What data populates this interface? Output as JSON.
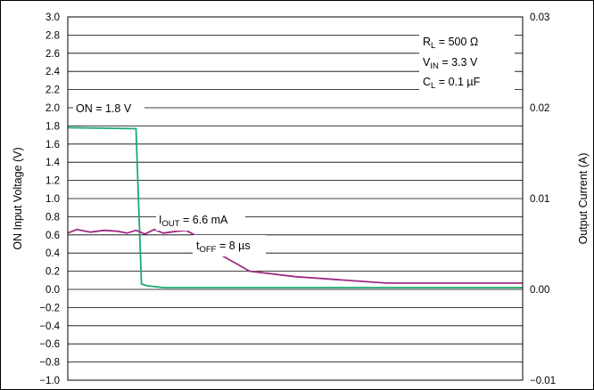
{
  "chart_data": {
    "type": "line",
    "title": "",
    "ylabel": "ON Input Voltage (V)",
    "y2label": "Output Current (A)",
    "xlabel": "",
    "ylim": [
      -1.0,
      3.0
    ],
    "y2lim": [
      -0.01,
      0.03
    ],
    "x_range": [
      0,
      50
    ],
    "grid": true,
    "yticks": [
      "3.0",
      "2.8",
      "2.6",
      "2.4",
      "2.2",
      "2.0",
      "1.8",
      "1.6",
      "1.4",
      "1.2",
      "1.0",
      "0.8",
      "0.6",
      "0.4",
      "0.2",
      "0.0",
      "−0.2",
      "−0.4",
      "−0.6",
      "−0.8",
      "−1.0"
    ],
    "y2ticks": [
      "0.03",
      "0.02",
      "0.01",
      "0.00",
      "−0.01"
    ],
    "series": [
      {
        "axis": "left",
        "color": "#1aaa6e",
        "x": [
          0,
          7.5,
          8.1,
          8.7,
          10.5,
          50
        ],
        "y": [
          1.78,
          1.77,
          0.06,
          0.04,
          0.02,
          0.02
        ]
      },
      {
        "axis": "right",
        "color": "#9e2a85",
        "x": [
          0,
          1,
          2.5,
          4,
          5.5,
          6.5,
          7.5,
          8.5,
          9.5,
          10.5,
          12,
          13,
          14.5,
          17,
          20,
          25,
          35,
          50
        ],
        "y": [
          0.0062,
          0.0066,
          0.0063,
          0.0065,
          0.0064,
          0.0062,
          0.0065,
          0.0061,
          0.0066,
          0.0062,
          0.0064,
          0.0065,
          0.0057,
          0.0037,
          0.002,
          0.0014,
          0.0007,
          0.0007
        ]
      }
    ],
    "annotations": {
      "rl": {
        "pre": "R",
        "sub": "L",
        "post": " = 500 Ω"
      },
      "vin": {
        "pre": "V",
        "sub": "IN",
        "post": " = 3.3 V"
      },
      "cl": {
        "pre": "C",
        "sub": "L",
        "post": " = 0.1 µF"
      },
      "on": "ON = 1.8 V",
      "iout": {
        "pre": "I",
        "sub": "OUT",
        "post": " = 6.6 mA"
      },
      "toff": {
        "pre": "t",
        "sub": "OFF",
        "post": " = 8 µs"
      }
    }
  }
}
